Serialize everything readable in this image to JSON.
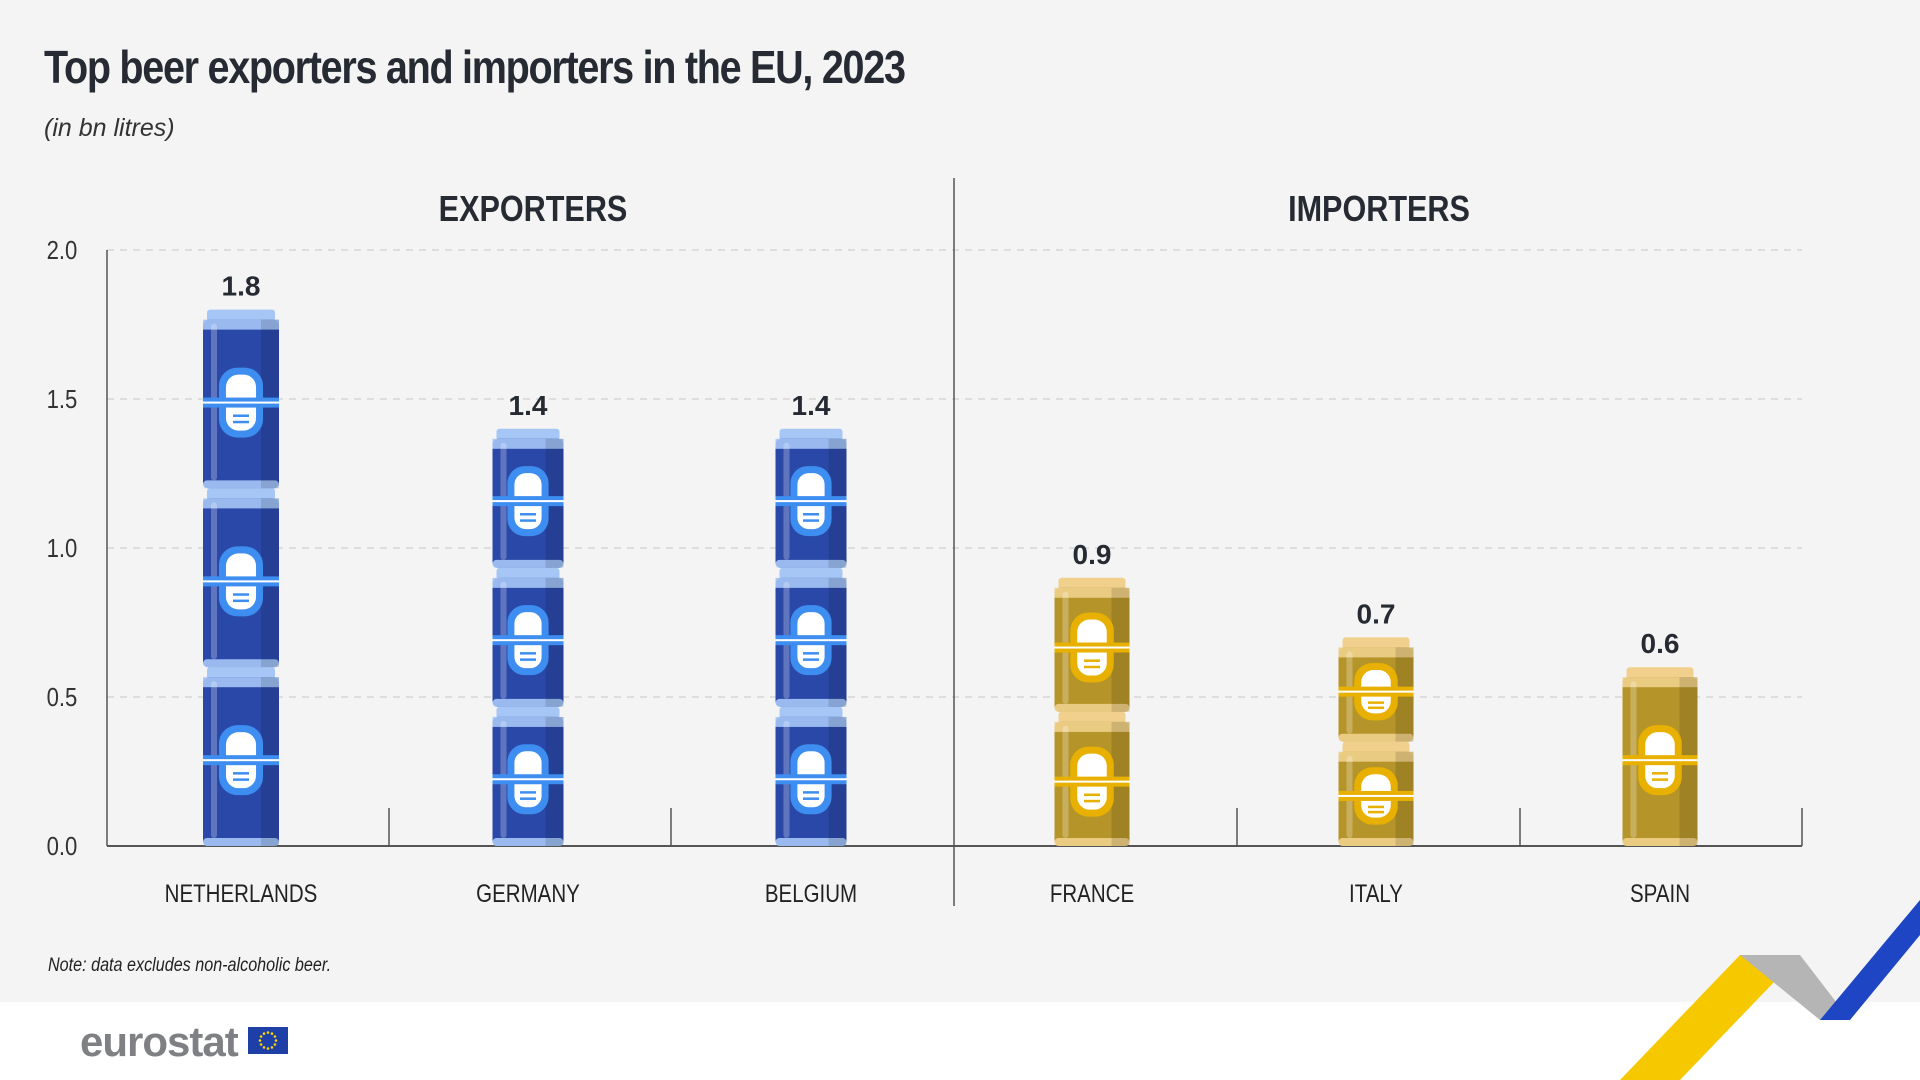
{
  "title": "Top beer exporters and importers in the EU, 2023",
  "subtitle": "(in bn litres)",
  "note": "Note: data excludes non-alcoholic beer.",
  "logo": {
    "text": "eurostat"
  },
  "colors": {
    "exporter_body": "#2a48a8",
    "exporter_top": "#a6c6f6",
    "exporter_band": "#3d8ef0",
    "importer_body": "#b5952a",
    "importer_top": "#f0d08c",
    "importer_band": "#e8b000",
    "eu_flag": "#1d3fa6",
    "deco_yellow": "#f6c800",
    "deco_blue": "#1d45c4",
    "deco_grey": "#b5b5b5"
  },
  "chart_data": {
    "type": "bar",
    "title": "Top beer exporters and importers in the EU, 2023",
    "ylabel": "",
    "ylim": [
      0,
      2.0
    ],
    "yticks": [
      "0.0",
      "0.5",
      "1.0",
      "1.5",
      "2.0"
    ],
    "grid": true,
    "groups": [
      {
        "name": "EXPORTERS",
        "categories": [
          "NETHERLANDS",
          "GERMANY",
          "BELGIUM"
        ],
        "values": [
          1.8,
          1.4,
          1.4
        ],
        "labels": [
          "1.8",
          "1.4",
          "1.4"
        ]
      },
      {
        "name": "IMPORTERS",
        "categories": [
          "FRANCE",
          "ITALY",
          "SPAIN"
        ],
        "values": [
          0.9,
          0.7,
          0.6
        ],
        "labels": [
          "0.9",
          "0.7",
          "0.6"
        ]
      }
    ]
  }
}
